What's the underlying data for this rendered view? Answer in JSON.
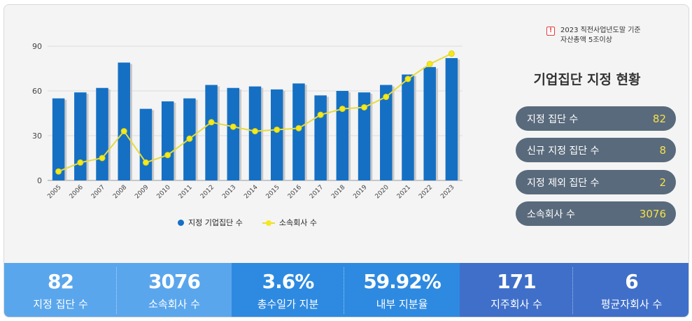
{
  "chart_data": {
    "type": "bar",
    "categories": [
      "2005",
      "2006",
      "2007",
      "2008",
      "2009",
      "2010",
      "2011",
      "2012",
      "2013",
      "2014",
      "2015",
      "2016",
      "2017",
      "2018",
      "2019",
      "2020",
      "2021",
      "2022",
      "2023"
    ],
    "series": [
      {
        "name": "지정 기업집단 수",
        "type": "bar",
        "color": "#1570c4",
        "values": [
          55,
          59,
          62,
          79,
          48,
          53,
          55,
          64,
          62,
          63,
          61,
          65,
          57,
          60,
          59,
          64,
          71,
          76,
          82
        ]
      },
      {
        "name": "소속회사 수",
        "type": "line",
        "color": "#f4e91a",
        "values": [
          6,
          12,
          15,
          33,
          12,
          17,
          28,
          39,
          36,
          33,
          34,
          35,
          44,
          48,
          49,
          56,
          68,
          78,
          85
        ]
      }
    ],
    "yticks": [
      "0",
      "30",
      "60",
      "90"
    ],
    "ylim": [
      0,
      90
    ],
    "grid": true,
    "legend": "bottom"
  },
  "note": {
    "icon": "exclamation-icon",
    "line1": "2023 직전사업년도말 기준",
    "line2": "자산총액 5조이상"
  },
  "panel": {
    "title": "기업집단 지정 현황",
    "items": [
      {
        "label": "지정 집단 수",
        "value": "82"
      },
      {
        "label": "신규 지정 집단 수",
        "value": "8"
      },
      {
        "label": "지정 제외 집단 수",
        "value": "2"
      },
      {
        "label": "소속회사 수",
        "value": "3076"
      }
    ]
  },
  "stats": [
    {
      "value": "82",
      "label": "지정 집단 수",
      "color": "#5aa6ec"
    },
    {
      "value": "3076",
      "label": "소속회사 수",
      "color": "#5aa6ec"
    },
    {
      "value": "3.6%",
      "label": "총수일가 지분",
      "color": "#2e8ae0"
    },
    {
      "value": "59.92%",
      "label": "내부 지분율",
      "color": "#2e8ae0"
    },
    {
      "value": "171",
      "label": "지주회사 수",
      "color": "#3f6fc9"
    },
    {
      "value": "6",
      "label": "평균자회사 수",
      "color": "#3f6fc9"
    }
  ]
}
